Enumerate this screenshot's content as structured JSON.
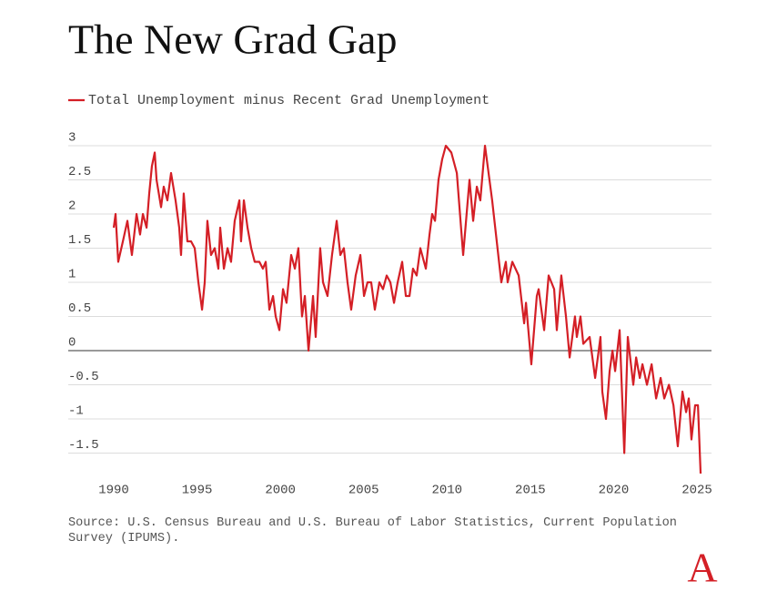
{
  "chart_data": {
    "type": "line",
    "title": "The New Grad Gap",
    "source": "Source: U.S. Census Bureau and U.S. Bureau of Labor Statistics, Current Population Survey (IPUMS).",
    "logo": "A",
    "legend": "top-left",
    "grid": true,
    "xlim": [
      1990,
      2025
    ],
    "xticks": [
      1990,
      1995,
      2000,
      2005,
      2010,
      2015,
      2020,
      2025
    ],
    "ylim": [
      -1.8,
      3
    ],
    "yticks": [
      3,
      2.5,
      2,
      1.5,
      1,
      0.5,
      0,
      -0.5,
      -1,
      -1.5
    ],
    "x": [
      1990.0,
      1990.11,
      1990.27,
      1990.55,
      1990.82,
      1991.09,
      1991.37,
      1991.58,
      1991.75,
      1991.97,
      1992.13,
      1992.29,
      1992.46,
      1992.57,
      1992.84,
      1993.0,
      1993.22,
      1993.44,
      1993.71,
      1993.93,
      1994.04,
      1994.2,
      1994.42,
      1994.64,
      1994.86,
      1995.08,
      1995.3,
      1995.46,
      1995.62,
      1995.84,
      1996.06,
      1996.28,
      1996.39,
      1996.61,
      1996.83,
      1997.04,
      1997.26,
      1997.54,
      1997.64,
      1997.81,
      1998.03,
      1998.25,
      1998.46,
      1998.74,
      1998.95,
      1999.12,
      1999.34,
      1999.56,
      1999.72,
      1999.94,
      2000.16,
      2000.37,
      2000.65,
      2000.87,
      2001.08,
      2001.3,
      2001.47,
      2001.69,
      2001.96,
      2002.12,
      2002.39,
      2002.56,
      2002.83,
      2003.1,
      2003.38,
      2003.6,
      2003.81,
      2004.03,
      2004.25,
      2004.52,
      2004.8,
      2005.02,
      2005.23,
      2005.45,
      2005.67,
      2005.94,
      2006.16,
      2006.38,
      2006.6,
      2006.82,
      2007.04,
      2007.31,
      2007.53,
      2007.75,
      2007.96,
      2008.18,
      2008.4,
      2008.73,
      2008.95,
      2009.11,
      2009.28,
      2009.49,
      2009.71,
      2009.93,
      2010.26,
      2010.59,
      2010.97,
      2011.35,
      2011.57,
      2011.79,
      2012.0,
      2012.28,
      2012.71,
      2013.26,
      2013.53,
      2013.64,
      2013.92,
      2014.3,
      2014.63,
      2014.74,
      2015.06,
      2015.39,
      2015.5,
      2015.83,
      2016.1,
      2016.43,
      2016.59,
      2016.86,
      2017.14,
      2017.36,
      2017.68,
      2017.79,
      2018.01,
      2018.18,
      2018.56,
      2018.89,
      2019.21,
      2019.32,
      2019.54,
      2019.76,
      2019.93,
      2020.09,
      2020.36,
      2020.64,
      2020.85,
      2021.18,
      2021.35,
      2021.57,
      2021.73,
      2022.0,
      2022.28,
      2022.55,
      2022.82,
      2023.04,
      2023.32,
      2023.59,
      2023.85,
      2024.13,
      2024.35,
      2024.51,
      2024.67,
      2024.89,
      2025.06,
      2025.22
    ],
    "series": [
      {
        "name": "Total Unemployment minus Recent Grad Unemployment",
        "color": "#d41f26",
        "values": [
          1.8,
          2.0,
          1.3,
          1.6,
          1.9,
          1.4,
          2.0,
          1.7,
          2.0,
          1.8,
          2.3,
          2.7,
          2.9,
          2.5,
          2.1,
          2.4,
          2.2,
          2.6,
          2.2,
          1.8,
          1.4,
          2.3,
          1.6,
          1.6,
          1.5,
          1.0,
          0.6,
          1.0,
          1.9,
          1.4,
          1.5,
          1.2,
          1.8,
          1.2,
          1.5,
          1.3,
          1.9,
          2.2,
          1.6,
          2.2,
          1.8,
          1.5,
          1.3,
          1.3,
          1.2,
          1.3,
          0.6,
          0.8,
          0.5,
          0.3,
          0.9,
          0.7,
          1.4,
          1.2,
          1.5,
          0.5,
          0.8,
          0.0,
          0.8,
          0.2,
          1.5,
          1.0,
          0.8,
          1.4,
          1.9,
          1.4,
          1.5,
          1.0,
          0.6,
          1.1,
          1.4,
          0.8,
          1.0,
          1.0,
          0.6,
          1.0,
          0.9,
          1.1,
          1.0,
          0.7,
          1.0,
          1.3,
          0.8,
          0.8,
          1.2,
          1.1,
          1.5,
          1.2,
          1.7,
          2.0,
          1.9,
          2.5,
          2.8,
          3.0,
          2.9,
          2.6,
          1.4,
          2.5,
          1.9,
          2.4,
          2.2,
          3.0,
          2.2,
          1.0,
          1.3,
          1.0,
          1.3,
          1.1,
          0.4,
          0.7,
          -0.2,
          0.8,
          0.9,
          0.3,
          1.1,
          0.9,
          0.3,
          1.1,
          0.5,
          -0.1,
          0.5,
          0.2,
          0.5,
          0.1,
          0.2,
          -0.4,
          0.2,
          -0.6,
          -1.0,
          -0.3,
          0.0,
          -0.3,
          0.3,
          -1.5,
          0.2,
          -0.5,
          -0.1,
          -0.4,
          -0.2,
          -0.5,
          -0.2,
          -0.7,
          -0.4,
          -0.7,
          -0.5,
          -0.8,
          -1.4,
          -0.6,
          -0.9,
          -0.7,
          -1.3,
          -0.8,
          -0.8,
          -1.8
        ]
      }
    ]
  }
}
